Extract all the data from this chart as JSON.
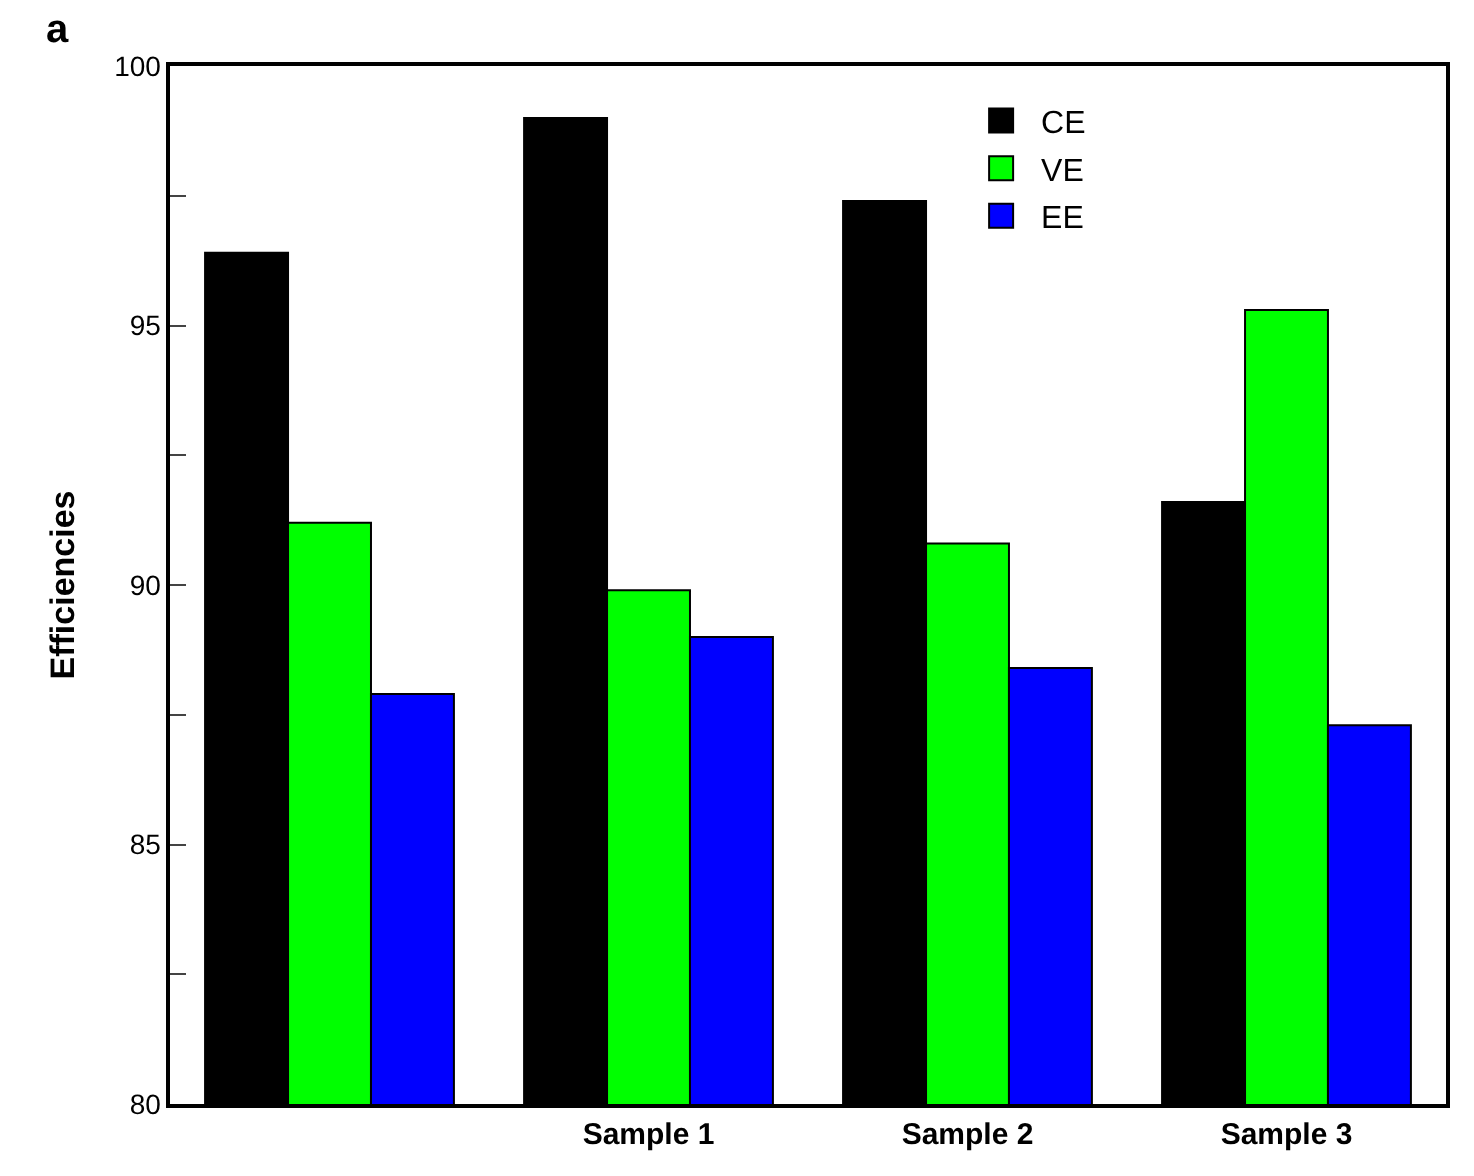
{
  "chart_data": {
    "type": "bar",
    "categories": [
      null,
      "Sample 1",
      "Sample 2",
      "Sample 3"
    ],
    "ylabel": "Efficiencies",
    "annotations": [
      "a"
    ],
    "series": [
      {
        "name": "CE",
        "color": "#000000",
        "values": [
          96.4,
          99.0,
          97.4,
          91.6
        ]
      },
      {
        "name": "VE",
        "color": "#00ff00",
        "values": [
          91.2,
          89.9,
          90.8,
          95.3
        ]
      },
      {
        "name": "EE",
        "color": "#0000ff",
        "values": [
          87.9,
          89.0,
          88.4,
          87.3
        ]
      }
    ],
    "ylim": [
      80,
      100
    ],
    "yticks": [
      80,
      {
        "value": 82.5,
        "label": null
      },
      85,
      {
        "value": 87.5,
        "label": null
      },
      90,
      {
        "value": 92.5,
        "label": null
      },
      95,
      {
        "value": 97.5,
        "label": null
      },
      100
    ],
    "legend": "top right"
  }
}
